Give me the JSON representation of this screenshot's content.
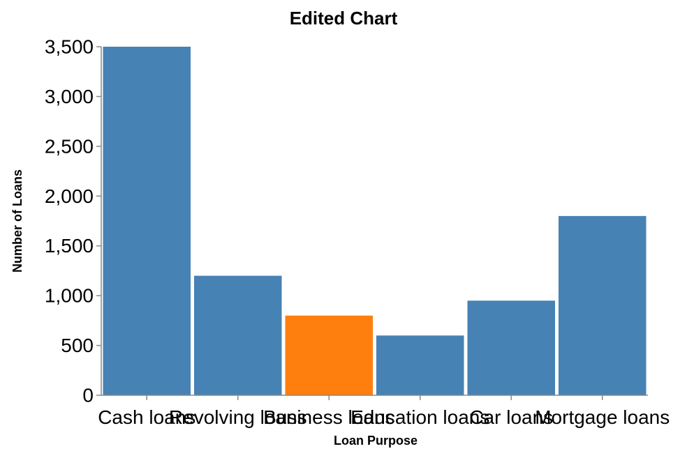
{
  "chart_data": {
    "type": "bar",
    "title": "Edited Chart",
    "xlabel": "Loan Purpose",
    "ylabel": "Number of Loans",
    "categories": [
      "Cash loans",
      "Revolving loans",
      "Business loans",
      "Education loans",
      "Car loans",
      "Mortgage loans"
    ],
    "values": [
      3500,
      1200,
      800,
      600,
      950,
      1800
    ],
    "ylim": [
      0,
      3500
    ],
    "yticks": [
      0,
      500,
      1000,
      1500,
      2000,
      2500,
      3000,
      3500
    ],
    "ytick_labels": [
      "0",
      "500",
      "1,000",
      "1,500",
      "2,000",
      "2,500",
      "3,000",
      "3,500"
    ],
    "highlight_category": "Business loans",
    "grid": false,
    "colors": {
      "bar": "#4682b4",
      "highlight": "#ff7f0e",
      "axis": "#888888"
    }
  }
}
